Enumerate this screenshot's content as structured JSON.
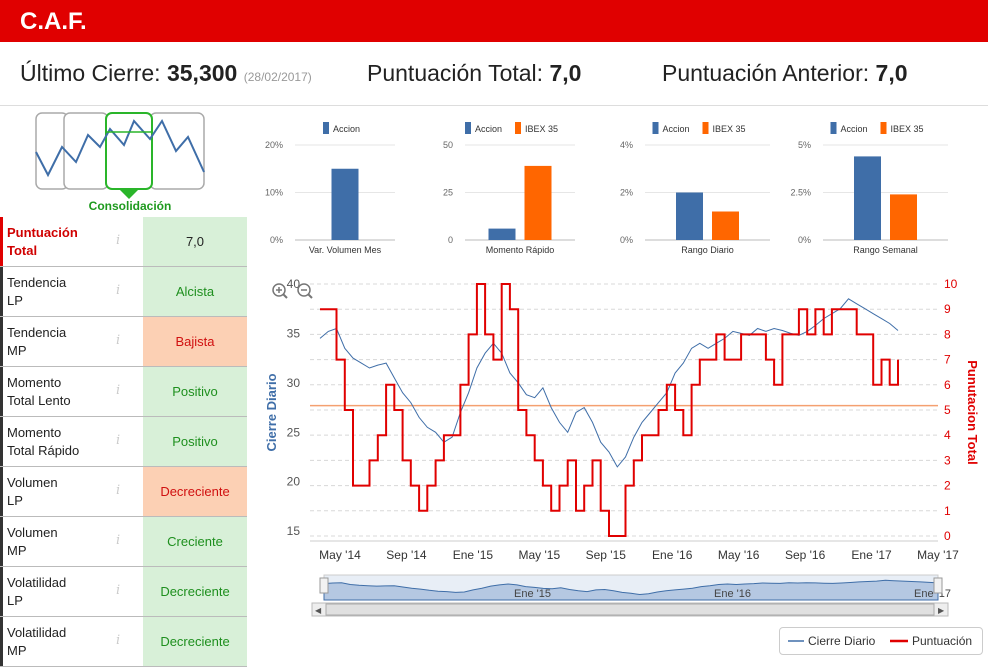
{
  "app": {
    "title": "C.A.F."
  },
  "header": {
    "ultimo_label": "Último Cierre:",
    "ultimo_value": "35,300",
    "ultimo_date": "(28/02/2017)",
    "puntuacion_label": "Puntuación Total:",
    "puntuacion_value": "7,0",
    "anterior_label": "Puntuación Anterior:",
    "anterior_value": "7,0"
  },
  "status": {
    "label": "Consolidación",
    "color": "#1e9a1e"
  },
  "indicators": [
    {
      "name_line1": "Puntuación",
      "name_line2": "Total",
      "info": "i",
      "value": "7,0",
      "tone": "total"
    },
    {
      "name_line1": "Tendencia",
      "name_line2": "LP",
      "info": "i",
      "value": "Alcista",
      "tone": "pos"
    },
    {
      "name_line1": "Tendencia",
      "name_line2": "MP",
      "info": "i",
      "value": "Bajista",
      "tone": "neg"
    },
    {
      "name_line1": "Momento",
      "name_line2": "Total Lento",
      "info": "i",
      "value": "Positivo",
      "tone": "pos"
    },
    {
      "name_line1": "Momento",
      "name_line2": "Total Rápido",
      "info": "i",
      "value": "Positivo",
      "tone": "pos"
    },
    {
      "name_line1": "Volumen",
      "name_line2": "LP",
      "info": "i",
      "value": "Decreciente",
      "tone": "neg"
    },
    {
      "name_line1": "Volumen",
      "name_line2": "MP",
      "info": "i",
      "value": "Creciente",
      "tone": "pos"
    },
    {
      "name_line1": "Volatilidad",
      "name_line2": "LP",
      "info": "i",
      "value": "Decreciente",
      "tone": "pos"
    },
    {
      "name_line1": "Volatilidad",
      "name_line2": "MP",
      "info": "i",
      "value": "Decreciente",
      "tone": "pos"
    }
  ],
  "colors": {
    "accion": "#3f6ea8",
    "ibex": "#ff6600",
    "price": "#3f6ea8",
    "score": "#e00000",
    "brand": "#e00000"
  },
  "chart_data": [
    {
      "type": "bar",
      "categories": [
        "Var. Volumen Mes"
      ],
      "series": [
        {
          "name": "Accion",
          "values": [
            15
          ]
        }
      ],
      "yticks": [
        "0%",
        "10%",
        "20%"
      ],
      "ylim": [
        0,
        20
      ]
    },
    {
      "type": "bar",
      "categories": [
        "Momento Rápido"
      ],
      "series": [
        {
          "name": "Accion",
          "values": [
            6
          ]
        },
        {
          "name": "IBEX 35",
          "values": [
            39
          ]
        }
      ],
      "yticks": [
        "0",
        "25",
        "50"
      ],
      "ylim": [
        0,
        50
      ]
    },
    {
      "type": "bar",
      "categories": [
        "Rango Diario"
      ],
      "series": [
        {
          "name": "Accion",
          "values": [
            2.0
          ]
        },
        {
          "name": "IBEX 35",
          "values": [
            1.2
          ]
        }
      ],
      "yticks": [
        "0%",
        "2%",
        "4%"
      ],
      "ylim": [
        0,
        4
      ]
    },
    {
      "type": "bar",
      "categories": [
        "Rango Semanal"
      ],
      "series": [
        {
          "name": "Accion",
          "values": [
            4.4
          ]
        },
        {
          "name": "IBEX 35",
          "values": [
            2.4
          ]
        }
      ],
      "yticks": [
        "0%",
        "2.5%",
        "5%"
      ],
      "ylim": [
        0,
        5
      ]
    },
    {
      "type": "line",
      "x_ticks": [
        "May '14",
        "Sep '14",
        "Ene '15",
        "May '15",
        "Sep '15",
        "Ene '16",
        "May '16",
        "Sep '16",
        "Ene '17",
        "May '17"
      ],
      "y_left": {
        "label": "Cierre Diario",
        "ticks": [
          15,
          20,
          25,
          30,
          35,
          40
        ],
        "range": [
          14,
          40
        ]
      },
      "y_right": {
        "label": "Punutacion Total",
        "ticks": [
          0,
          1,
          2,
          3,
          4,
          5,
          6,
          7,
          8,
          9,
          10
        ],
        "range": [
          -0.2,
          10
        ]
      },
      "plot_line": {
        "value": 27.7,
        "axis": "left"
      },
      "series": [
        {
          "name": "Cierre Diario",
          "axis": "left",
          "x": [
            0,
            0.5,
            1,
            1.5,
            2,
            2.5,
            3,
            3.5,
            4,
            4.5,
            5,
            5.5,
            6,
            6.5,
            7,
            7.5,
            8,
            8.5,
            9,
            9.5,
            10,
            10.5,
            11,
            11.5,
            12,
            12.5,
            13,
            13.5,
            14,
            14.5,
            15,
            15.5,
            16,
            16.5,
            17,
            17.5,
            18,
            18.5,
            19,
            19.5,
            20,
            20.5,
            21,
            21.5,
            22,
            22.5,
            23,
            23.5,
            24,
            24.5,
            25,
            25.5,
            26,
            26.5,
            27,
            27.5,
            28,
            28.5,
            29,
            29.5,
            30,
            30.5,
            31,
            31.5,
            32,
            32.5,
            33,
            33.5,
            34,
            34.5,
            35
          ],
          "y": [
            34.5,
            35.2,
            35.5,
            33.5,
            32.5,
            32.0,
            31.5,
            31.8,
            32.0,
            30.5,
            29.0,
            28.0,
            26.5,
            25.5,
            25.0,
            24.0,
            24.5,
            27.0,
            29.0,
            31.5,
            33.0,
            34.0,
            33.0,
            31.0,
            30.0,
            28.8,
            28.5,
            29.5,
            27.5,
            26.0,
            25.0,
            27.0,
            27.5,
            26.0,
            24.0,
            23.0,
            21.5,
            22.5,
            24.5,
            26.0,
            27.0,
            28.0,
            29.0,
            31.0,
            32.0,
            33.5,
            34.0,
            33.5,
            34.0,
            34.5,
            35.2,
            35.0,
            34.8,
            35.5,
            35.2,
            35.5,
            35.3,
            35.0,
            34.8,
            35.2,
            35.8,
            36.5,
            37.0,
            37.5,
            38.5,
            38.0,
            37.5,
            37.0,
            36.5,
            36.0,
            35.3
          ]
        },
        {
          "name": "Puntuación",
          "axis": "right",
          "x": [
            0,
            0.5,
            1,
            1.5,
            2,
            2.5,
            3,
            3.5,
            4,
            4.5,
            5,
            5.5,
            6,
            6.5,
            7,
            7.5,
            8,
            8.5,
            9,
            9.5,
            10,
            10.5,
            11,
            11.5,
            12,
            12.5,
            13,
            13.5,
            14,
            14.5,
            15,
            15.5,
            16,
            16.5,
            17,
            17.5,
            18,
            18.5,
            19,
            19.5,
            20,
            20.5,
            21,
            21.5,
            22,
            22.5,
            23,
            23.5,
            24,
            24.5,
            25,
            25.5,
            26,
            26.5,
            27,
            27.5,
            28,
            28.5,
            29,
            29.5,
            30,
            30.5,
            31,
            31.5,
            32,
            32.5,
            33,
            33.5,
            34,
            34.5,
            35
          ],
          "y": [
            9,
            9,
            7,
            5,
            2,
            2,
            3,
            4,
            6,
            5,
            3,
            2,
            1,
            2,
            3,
            4,
            4,
            6,
            8,
            10,
            8,
            7,
            10,
            9,
            5,
            4,
            3,
            2,
            1,
            2,
            3,
            1,
            2,
            3,
            1,
            0,
            0,
            2,
            3,
            4,
            4,
            5,
            6,
            5,
            4,
            6,
            7,
            7,
            8,
            7,
            7,
            8,
            8,
            8,
            7,
            6,
            8,
            8,
            9,
            8,
            9,
            8,
            9,
            9,
            9,
            8,
            8,
            6,
            7,
            6,
            7
          ]
        }
      ]
    }
  ],
  "navigator": {
    "ticks": [
      "Ene '15",
      "Ene '16",
      "Ene '17"
    ]
  },
  "legend": {
    "items": [
      "Cierre Diario",
      "Puntuación"
    ]
  }
}
